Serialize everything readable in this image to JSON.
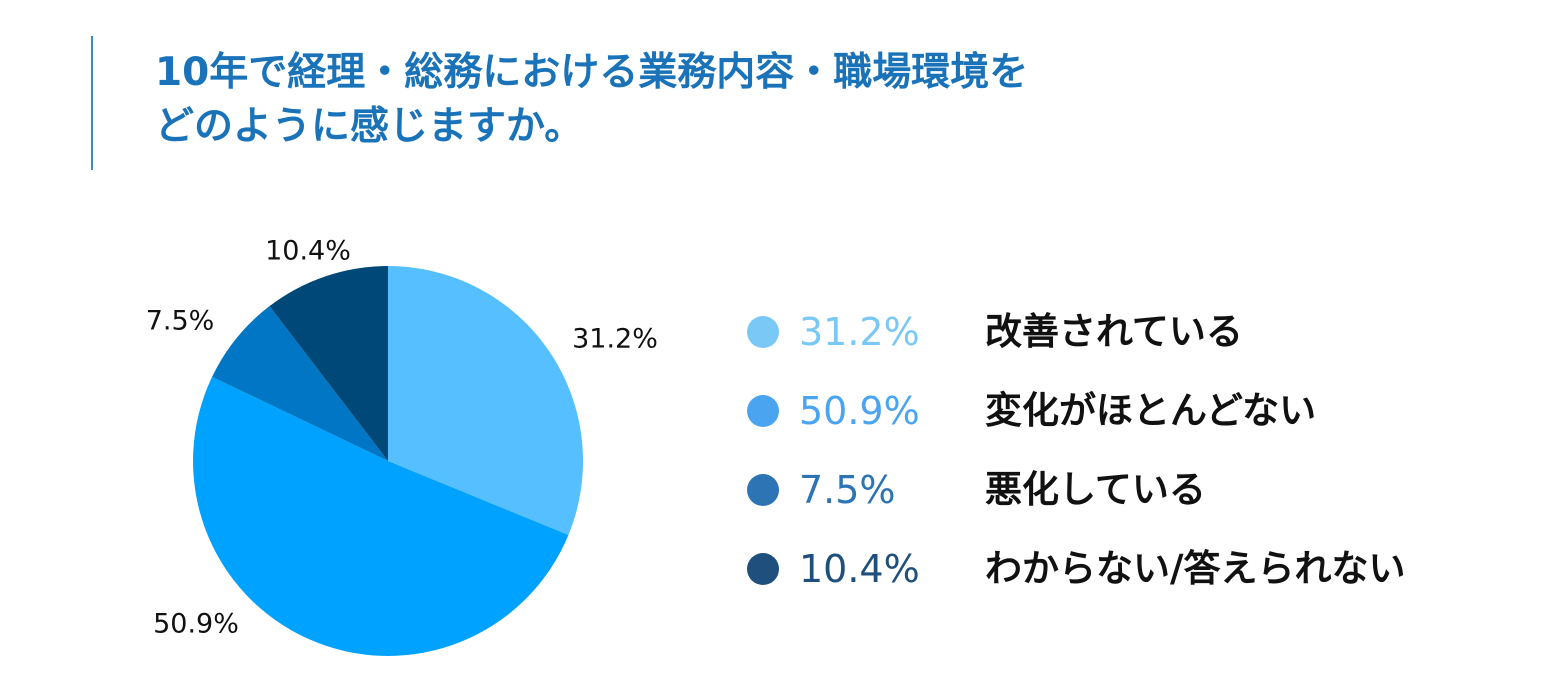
{
  "title_line1": "10年で経理・総務における業務内容・職場環境を",
  "title_line2": "どのように感じますか。",
  "chart_data": {
    "type": "pie",
    "title": "10年で経理・総務における業務内容・職場環境をどのように感じますか。",
    "categories": [
      "改善されている",
      "変化がほとんどない",
      "悪化している",
      "わからない/答えられない"
    ],
    "values": [
      31.2,
      50.9,
      7.5,
      10.4
    ],
    "value_labels": [
      "31.2%",
      "50.9%",
      "7.5%",
      "10.4%"
    ],
    "colors": [
      "#55bfff",
      "#00a2ff",
      "#0076c4",
      "#004878"
    ],
    "legend_dot_colors": [
      "#7ac8f5",
      "#4ba4f0",
      "#2d74b4",
      "#1f4f7c"
    ],
    "legend_text_colors": [
      "#7ac8f5",
      "#4ba4f0",
      "#2d74b4",
      "#1f4f7c"
    ],
    "legend_position": "right"
  }
}
